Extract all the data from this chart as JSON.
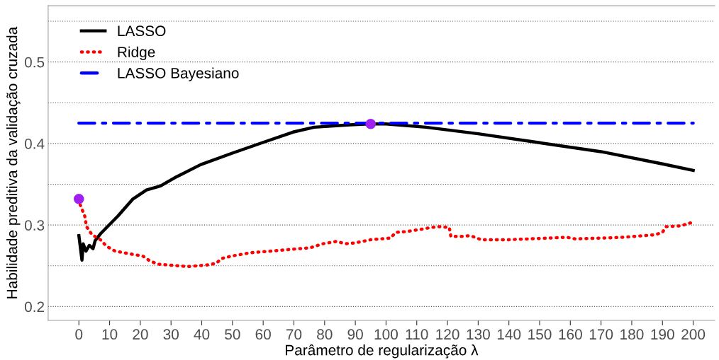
{
  "chart_data": {
    "type": "line",
    "xlabel": "Parâmetro de regularização λ",
    "ylabel": "Habilidade preditiva da validação cruzada",
    "xlim": [
      -10,
      207
    ],
    "ylim": [
      0.183,
      0.569
    ],
    "xticks": [
      0,
      10,
      20,
      30,
      40,
      50,
      60,
      70,
      80,
      90,
      100,
      110,
      120,
      130,
      140,
      150,
      160,
      170,
      180,
      190,
      200
    ],
    "yticks": [
      0.2,
      {
        "value": 0.25,
        "label": null
      },
      0.3,
      {
        "value": 0.35,
        "label": null
      },
      0.4,
      {
        "value": 0.45,
        "label": null
      },
      0.5,
      {
        "value": 0.55,
        "label": null
      }
    ],
    "grid": "y",
    "legend": "top left",
    "series": [
      {
        "name": "LASSO",
        "color": "#000000",
        "line_style": "solid",
        "x": [
          0,
          1,
          1.4,
          2.3,
          3.4,
          4.6,
          5.3,
          7.2,
          12.7,
          17.6,
          22,
          26.6,
          31.2,
          39.6,
          49.8,
          59.7,
          69.7,
          76.6,
          88.2,
          95,
          100,
          113,
          130,
          150,
          170,
          190,
          200
        ],
        "values": [
          0.287,
          0.257,
          0.277,
          0.268,
          0.275,
          0.271,
          0.281,
          0.29,
          0.311,
          0.332,
          0.343,
          0.348,
          0.358,
          0.374,
          0.388,
          0.401,
          0.414,
          0.42,
          0.423,
          0.424,
          0.424,
          0.42,
          0.412,
          0.401,
          0.39,
          0.375,
          0.367
        ]
      },
      {
        "name": "Ridge",
        "color": "#ff0000",
        "line_style": "dotted",
        "x": [
          0,
          0.3,
          1.9,
          2.5,
          4.3,
          7,
          9,
          11.8,
          17.6,
          20.8,
          23.1,
          25.7,
          32.4,
          35.4,
          41.7,
          44.7,
          46.5,
          49.8,
          55.8,
          62.5,
          68.5,
          75.2,
          79.4,
          84,
          86.6,
          89.8,
          95.1,
          101.4,
          103.2,
          106.7,
          111.8,
          114.6,
          117.4,
          120.6,
          121.1,
          124.5,
          127.5,
          131,
          140,
          146.5,
          153,
          158.8,
          161.6,
          170.8,
          177.3,
          184,
          187.5,
          190,
          191.2,
          196.3,
          198.1,
          200
        ],
        "values": [
          0.332,
          0.326,
          0.311,
          0.298,
          0.288,
          0.282,
          0.274,
          0.268,
          0.264,
          0.262,
          0.256,
          0.252,
          0.25,
          0.249,
          0.251,
          0.253,
          0.259,
          0.262,
          0.266,
          0.268,
          0.27,
          0.272,
          0.277,
          0.28,
          0.277,
          0.278,
          0.282,
          0.284,
          0.291,
          0.292,
          0.295,
          0.297,
          0.298,
          0.297,
          0.286,
          0.286,
          0.287,
          0.282,
          0.282,
          0.283,
          0.284,
          0.285,
          0.283,
          0.284,
          0.285,
          0.287,
          0.288,
          0.291,
          0.298,
          0.299,
          0.302,
          0.303
        ]
      },
      {
        "name": "LASSO Bayesiano",
        "color": "#0000ff",
        "line_style": "dashdot",
        "x": [
          0,
          200
        ],
        "values": [
          0.425,
          0.425
        ]
      },
      {
        "type": "scatter",
        "color": "#a020f0",
        "marker": "circle",
        "x": [
          0,
          95
        ],
        "values": [
          0.332,
          0.424
        ]
      }
    ]
  }
}
